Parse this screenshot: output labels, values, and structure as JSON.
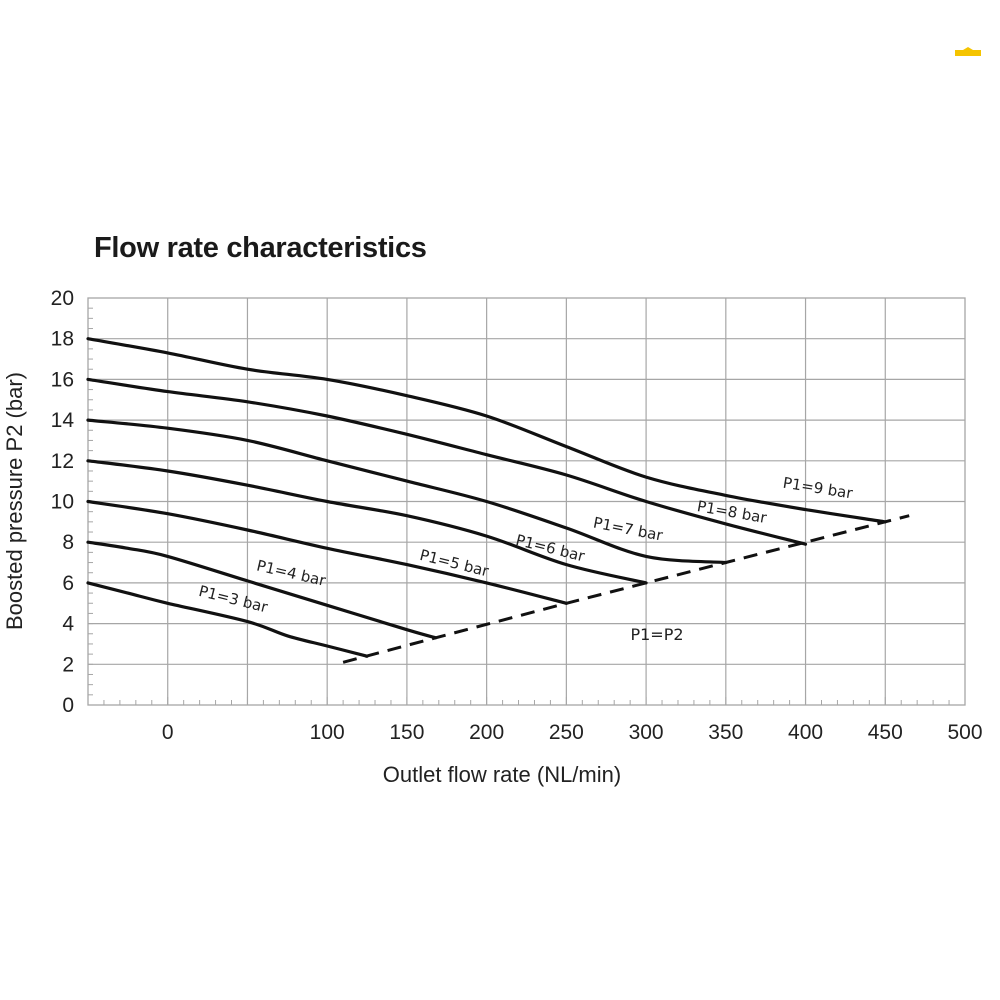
{
  "chart_data": {
    "type": "line",
    "title": "Flow rate characteristics",
    "xlabel": "Outlet flow rate (NL/min)",
    "ylabel": "Boosted pressure P2 (bar)",
    "xlim": [
      -50,
      500
    ],
    "ylim": [
      0,
      20
    ],
    "x_tick_values": [
      0,
      100,
      150,
      200,
      250,
      300,
      350,
      400,
      450,
      500
    ],
    "x_tick_labels": [
      "0",
      "100",
      "150",
      "200",
      "250",
      "300",
      "350",
      "400",
      "450",
      "500"
    ],
    "y_ticks": [
      "0",
      "2",
      "4",
      "6",
      "8",
      "10",
      "12",
      "14",
      "16",
      "18",
      "20"
    ],
    "grid": true,
    "series": [
      {
        "name": "P1=3 bar",
        "x": [
          -50,
          -25,
          0,
          50,
          75,
          100,
          125
        ],
        "y": [
          6.0,
          5.5,
          5.0,
          4.1,
          3.4,
          2.9,
          2.4
        ]
      },
      {
        "name": "P1=4 bar",
        "x": [
          -50,
          -25,
          0,
          50,
          100,
          150,
          168
        ],
        "y": [
          8.0,
          7.7,
          7.3,
          6.1,
          4.9,
          3.7,
          3.3
        ]
      },
      {
        "name": "P1=5 bar",
        "x": [
          -50,
          0,
          50,
          100,
          150,
          200,
          250
        ],
        "y": [
          10.0,
          9.4,
          8.6,
          7.7,
          6.9,
          6.0,
          5.0
        ]
      },
      {
        "name": "P1=6 bar",
        "x": [
          -50,
          0,
          50,
          100,
          150,
          200,
          250,
          300
        ],
        "y": [
          12.0,
          11.5,
          10.8,
          10.0,
          9.3,
          8.3,
          6.9,
          6.0
        ]
      },
      {
        "name": "P1=7 bar",
        "x": [
          -50,
          0,
          50,
          100,
          150,
          200,
          250,
          300,
          350
        ],
        "y": [
          14.0,
          13.6,
          13.0,
          12.0,
          11.0,
          10.0,
          8.7,
          7.3,
          7.0
        ]
      },
      {
        "name": "P1=8 bar",
        "x": [
          -50,
          0,
          50,
          100,
          150,
          200,
          250,
          300,
          350,
          400
        ],
        "y": [
          16.0,
          15.4,
          14.9,
          14.2,
          13.3,
          12.3,
          11.3,
          10.0,
          8.9,
          7.9
        ]
      },
      {
        "name": "P1=9 bar",
        "x": [
          -50,
          0,
          50,
          100,
          150,
          200,
          250,
          300,
          350,
          400,
          450
        ],
        "y": [
          18.0,
          17.3,
          16.5,
          16.0,
          15.2,
          14.2,
          12.7,
          11.2,
          10.3,
          9.6,
          9.0
        ]
      },
      {
        "name": "P1=P2",
        "style": "dashed",
        "x": [
          110,
          168,
          250,
          300,
          350,
          400,
          465
        ],
        "y": [
          2.1,
          3.3,
          5.0,
          6.0,
          7.0,
          8.0,
          9.3
        ]
      }
    ],
    "annotations": [
      "P1=3 bar",
      "P1=4 bar",
      "P1=5 bar",
      "P1=6 bar",
      "P1=7 bar",
      "P1=8 bar",
      "P1=9 bar",
      "P1=P2"
    ]
  },
  "colors": {
    "grid": "#a6a6a6",
    "curve": "#111111",
    "text": "#222222",
    "logo": "#f5c400"
  }
}
